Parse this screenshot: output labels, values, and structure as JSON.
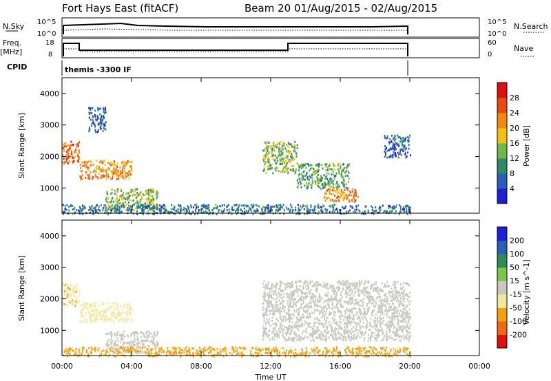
{
  "header": {
    "station": "Fort Hays East (fitACF)",
    "beam_dates": "Beam 20 01/Aug/2015 - 02/Aug/2015"
  },
  "top_panels": {
    "nsky_label": "N.Sky",
    "nsky_ticks": [
      "10^5",
      "10^0"
    ],
    "nsearch_label": "N.Search",
    "nsearch_ticks": [
      "10^5",
      "10^0"
    ],
    "freq_label": "Freq.",
    "freq_unit": "[MHz]",
    "freq_ticks": [
      "18",
      "8"
    ],
    "nave_label": "Nave",
    "nave_ticks": [
      "60",
      "0"
    ],
    "cpid_label": "CPID",
    "cpid_value": "themis -3300 IF"
  },
  "x_axis": {
    "label": "Time UT",
    "ticks": [
      "00:00",
      "04:00",
      "08:00",
      "12:00",
      "16:00",
      "20:00",
      "00:00"
    ]
  },
  "colors": {
    "power_scale": [
      "#1f1fd6",
      "#2a5fb8",
      "#2f8a6a",
      "#6fb84a",
      "#f2c010",
      "#f08a10",
      "#e84a10",
      "#e01010"
    ],
    "velocity_scale": [
      "#e01010",
      "#f06a10",
      "#f0a010",
      "#f2e8a0",
      "#c8c8c0",
      "#7ac84a",
      "#2e8a5a",
      "#2a5fb8",
      "#1f1fd6"
    ],
    "ground_gray": "#c8c8c0"
  },
  "chart_data": [
    {
      "type": "heatmap",
      "title": "",
      "xlabel": "Time UT",
      "ylabel": "Slant Range [km]",
      "xlim": [
        "00:00",
        "24:00"
      ],
      "ylim": [
        200,
        4500
      ],
      "yticks": [
        1000,
        2000,
        3000,
        4000
      ],
      "colorbar_label": "Power [dB]",
      "colorbar_ticks": [
        4,
        8,
        12,
        16,
        20,
        24,
        28
      ],
      "colorbar_range": [
        0,
        32
      ],
      "echo_regions": [
        {
          "t_start": 0.0,
          "t_end": 1.0,
          "r_start": 1800,
          "r_end": 2500,
          "value": 24
        },
        {
          "t_start": 1.0,
          "t_end": 4.0,
          "r_start": 1300,
          "r_end": 1900,
          "value": 22
        },
        {
          "t_start": 1.5,
          "t_end": 2.5,
          "r_start": 2800,
          "r_end": 3600,
          "value": 6
        },
        {
          "t_start": 2.5,
          "t_end": 5.5,
          "r_start": 300,
          "r_end": 1000,
          "value": 14
        },
        {
          "t_start": 11.5,
          "t_end": 13.5,
          "r_start": 1500,
          "r_end": 2500,
          "value": 14
        },
        {
          "t_start": 13.5,
          "t_end": 16.5,
          "r_start": 1000,
          "r_end": 1800,
          "value": 12
        },
        {
          "t_start": 15.0,
          "t_end": 17.0,
          "r_start": 600,
          "r_end": 1000,
          "value": 22
        },
        {
          "t_start": 18.5,
          "t_end": 20.0,
          "r_start": 2000,
          "r_end": 2700,
          "value": 6
        },
        {
          "t_start": 0.0,
          "t_end": 20.0,
          "r_start": 200,
          "r_end": 500,
          "value": 8
        }
      ]
    },
    {
      "type": "heatmap",
      "title": "",
      "xlabel": "Time UT",
      "ylabel": "Slant Range [km]",
      "xlim": [
        "00:00",
        "24:00"
      ],
      "ylim": [
        200,
        4500
      ],
      "yticks": [
        1000,
        2000,
        3000,
        4000
      ],
      "colorbar_label": "Velocity [m s^-1]",
      "colorbar_ticks": [
        200,
        100,
        50,
        15,
        -15,
        -50,
        -100,
        -200
      ],
      "echo_regions": [
        {
          "t_start": 0.0,
          "t_end": 1.0,
          "r_start": 1800,
          "r_end": 2500,
          "value": -40
        },
        {
          "t_start": 1.0,
          "t_end": 4.0,
          "r_start": 1300,
          "r_end": 1900,
          "value": -30
        },
        {
          "t_start": 2.5,
          "t_end": 5.5,
          "r_start": 300,
          "r_end": 1000,
          "value": 0
        },
        {
          "t_start": 11.5,
          "t_end": 20.0,
          "r_start": 700,
          "r_end": 2600,
          "value": 0
        },
        {
          "t_start": 0.0,
          "t_end": 20.0,
          "r_start": 200,
          "r_end": 500,
          "value": -60
        }
      ]
    }
  ]
}
